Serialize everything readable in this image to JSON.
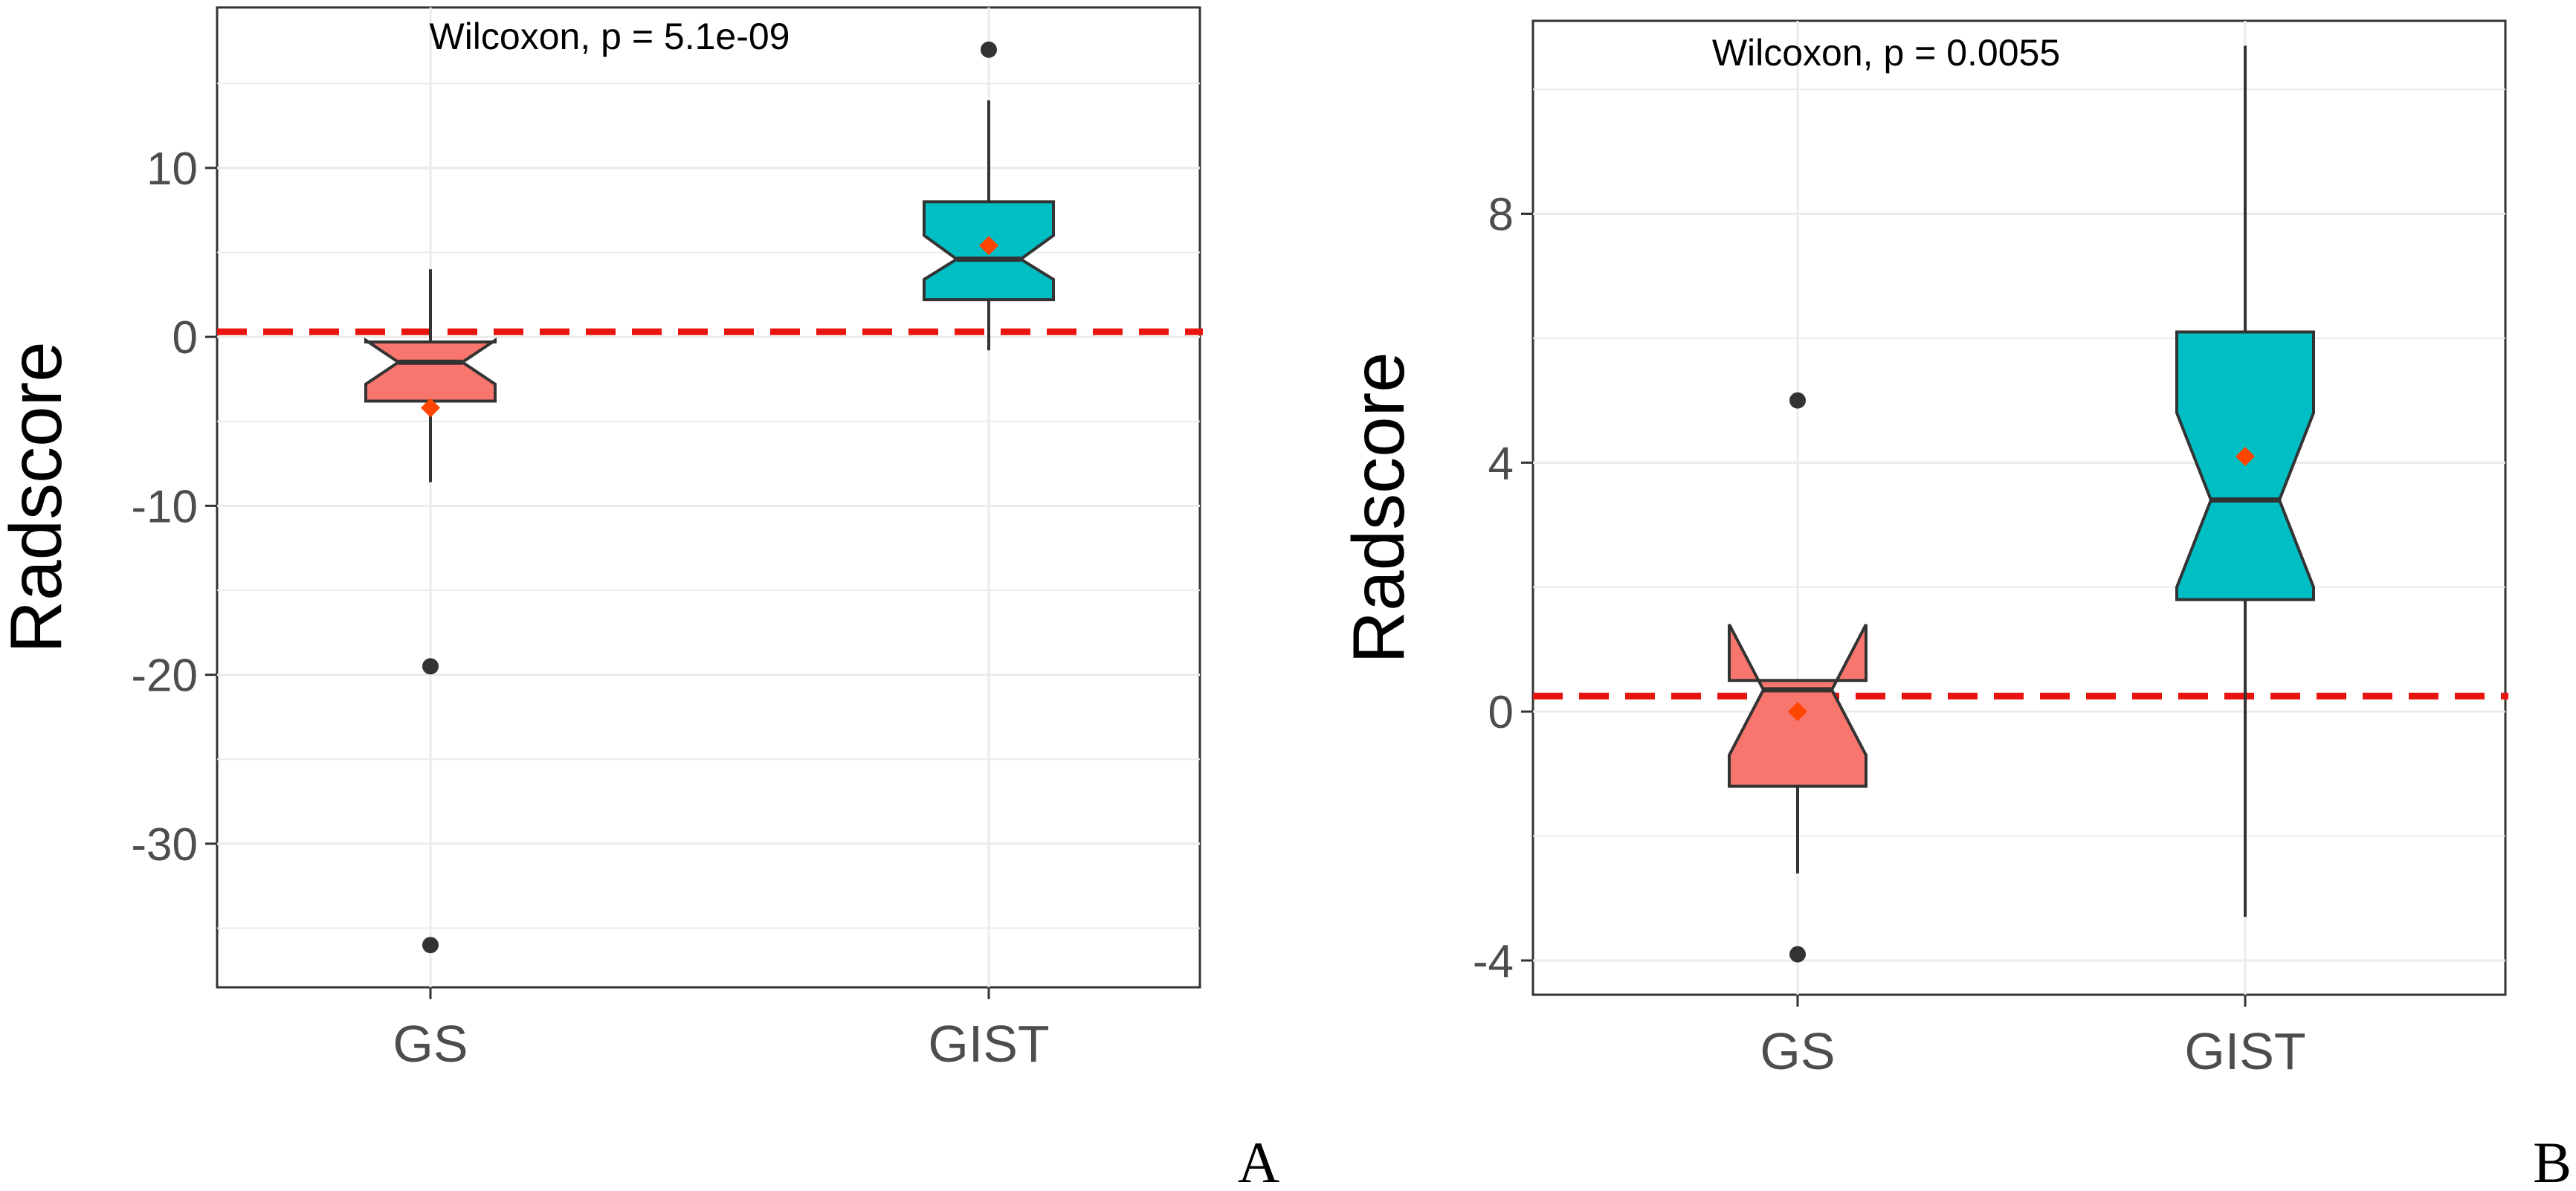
{
  "panels": [
    {
      "label": "A",
      "chart_data": {
        "type": "box",
        "title": "",
        "xlabel": "",
        "ylabel": "Radscore",
        "categories": [
          "GS",
          "GIST"
        ],
        "ylim": [
          -38.5,
          19.5
        ],
        "yticks": [
          10,
          0,
          -10,
          -20,
          -30
        ],
        "grid": true,
        "reference_line": {
          "y": 0.3,
          "color": "#e8140e",
          "style": "dashed"
        },
        "annotation": "Wilcoxon, p = 5.1e-09",
        "series": [
          {
            "name": "GS",
            "color": "#f8766d",
            "q1": -3.8,
            "median": -1.5,
            "q3": -0.3,
            "notch_low": -2.8,
            "notch_high": -0.2,
            "whisker_low": -8.6,
            "whisker_high": 4.0,
            "mean": -4.2,
            "outliers": [
              -19.5,
              -36.0
            ]
          },
          {
            "name": "GIST",
            "color": "#00bfc4",
            "q1": 2.2,
            "median": 4.6,
            "q3": 8.0,
            "notch_low": 3.4,
            "notch_high": 6.0,
            "whisker_low": -0.8,
            "whisker_high": 14.0,
            "mean": 5.4,
            "outliers": [
              17.0
            ]
          }
        ]
      }
    },
    {
      "label": "B",
      "chart_data": {
        "type": "box",
        "title": "",
        "xlabel": "",
        "ylabel": "Radscore",
        "categories": [
          "GS",
          "GIST"
        ],
        "ylim": [
          -4.55,
          11.1
        ],
        "yticks": [
          8,
          4,
          0,
          -4
        ],
        "grid": true,
        "reference_line": {
          "y": 0.25,
          "color": "#e8140e",
          "style": "dashed"
        },
        "annotation": "Wilcoxon, p = 0.0055",
        "series": [
          {
            "name": "GS",
            "color": "#f8766d",
            "q1": -1.2,
            "median": 0.35,
            "q3": 0.5,
            "notch_low": -0.7,
            "notch_high": 1.4,
            "whisker_low": -2.6,
            "whisker_high": 0.5,
            "mean": 0.0,
            "outliers": [
              5.0,
              -3.9
            ]
          },
          {
            "name": "GIST",
            "color": "#00bfc4",
            "q1": 1.8,
            "median": 3.4,
            "q3": 6.1,
            "notch_low": 2.0,
            "notch_high": 4.8,
            "whisker_low": -3.3,
            "whisker_high": 10.7,
            "mean": 4.1,
            "outliers": []
          }
        ]
      }
    }
  ]
}
